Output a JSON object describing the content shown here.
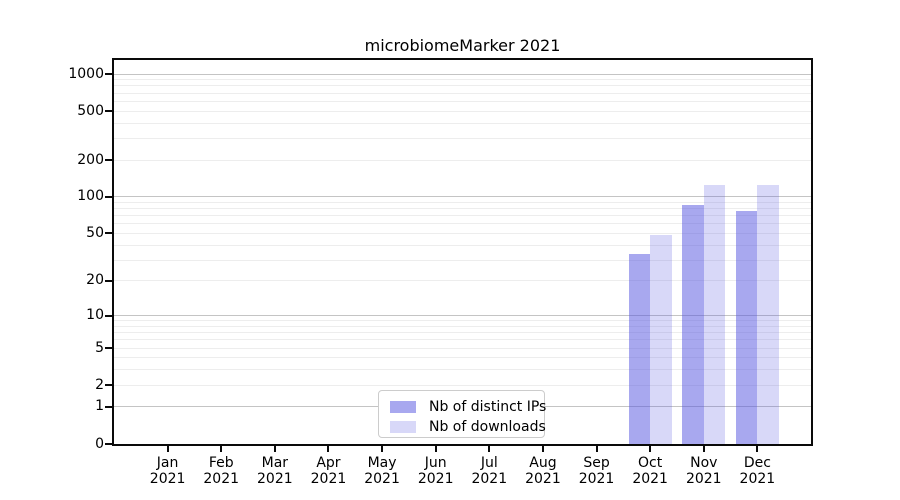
{
  "chart_data": {
    "type": "bar",
    "title": "microbiomeMarker 2021",
    "categories": [
      "Jan 2021",
      "Feb 2021",
      "Mar 2021",
      "Apr 2021",
      "May 2021",
      "Jun 2021",
      "Jul 2021",
      "Aug 2021",
      "Sep 2021",
      "Oct 2021",
      "Nov 2021",
      "Dec 2021"
    ],
    "series": [
      {
        "id": "distinct-ips",
        "name": "Nb of distinct IPs",
        "color": "rgba(85,85,224,0.51)",
        "solid_color": "#a8a8ef",
        "values": [
          0,
          0,
          0,
          0,
          0,
          0,
          0,
          0,
          0,
          34,
          85,
          76
        ]
      },
      {
        "id": "downloads",
        "name": "Nb of downloads",
        "color": "rgba(85,85,224,0.23)",
        "solid_color": "#d8d8f8",
        "values": [
          0,
          0,
          0,
          0,
          0,
          0,
          0,
          0,
          0,
          49,
          125,
          125
        ]
      }
    ],
    "xlabel": "",
    "ylabel": "",
    "y_ticks": [
      0,
      1,
      2,
      5,
      10,
      20,
      50,
      100,
      200,
      500,
      1000
    ],
    "y_scale": "log10(value+1)",
    "ylim": [
      0,
      1300
    ],
    "grid": "horizontal, minor light + major darker at 1/10/100/1000",
    "legend_position": "inside bottom-center",
    "colors": {
      "bar_distinct_ips": "#a8a8ef",
      "bar_downloads": "#d8d8f8",
      "grid_major": "#c4c4c4",
      "grid_minor": "#ededed",
      "spine": "#0a0a0a",
      "text": "#000000",
      "background": "#ffffff",
      "legend_border": "#cccccc"
    }
  }
}
